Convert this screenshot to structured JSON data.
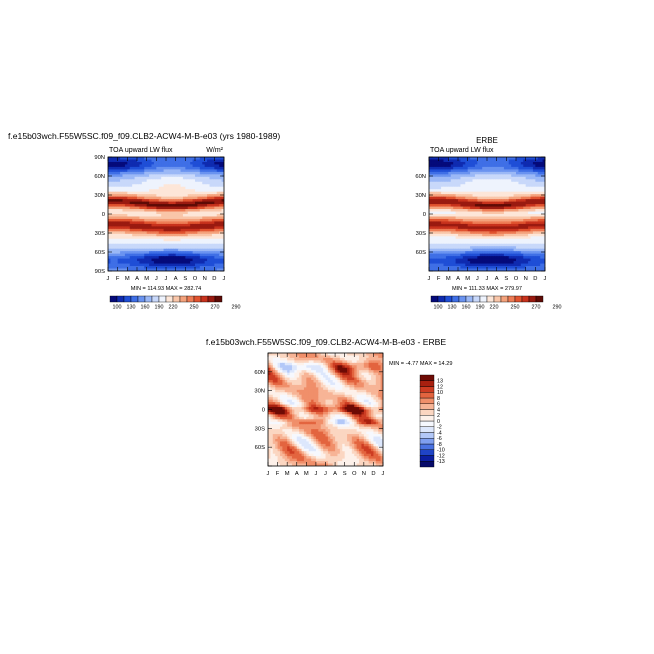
{
  "figure": {
    "left_title": "f.e15b03wch.F55W5SC.f09_f09.CLB2-ACW4-M-B-e03 (yrs 1980-1989)",
    "right_title": "ERBE",
    "bottom_title": "f.e15b03wch.F55W5SC.f09_f09.CLB2-ACW4-M-B-e03 - ERBE"
  },
  "chart_data": [
    {
      "type": "heatmap",
      "title": "TOA upward LW flux",
      "units": "W/m²",
      "x_ticks": [
        "J",
        "F",
        "M",
        "A",
        "M",
        "J",
        "J",
        "A",
        "S",
        "O",
        "N",
        "D",
        "J"
      ],
      "y_ticks": [
        "90N",
        "60N",
        "30N",
        "0",
        "30S",
        "60S",
        "90S"
      ],
      "stats": "MIN = 114.93 MAX = 282.74",
      "min": 114.93,
      "max": 282.74,
      "colorbar_labels": [
        "100",
        "130",
        "160",
        "190",
        "220",
        "250",
        "270",
        "290"
      ],
      "levels": [
        100,
        115,
        130,
        145,
        160,
        175,
        190,
        205,
        220,
        235,
        250,
        260,
        270,
        280,
        290
      ],
      "colors": [
        "#050a7a",
        "#0f2bb0",
        "#1f4ed6",
        "#3f6fe6",
        "#6a93f0",
        "#9bb8f6",
        "#c8d8fa",
        "#eef3fd",
        "#fde6d8",
        "#f9c6a9",
        "#f4a27c",
        "#ee7c55",
        "#e1532f",
        "#c8321d",
        "#9a1a10",
        "#5e0b06"
      ]
    },
    {
      "type": "heatmap",
      "title": "TOA upward LW flux",
      "units": "",
      "x_ticks": [
        "J",
        "F",
        "M",
        "A",
        "M",
        "J",
        "J",
        "A",
        "S",
        "O",
        "N",
        "D",
        "J"
      ],
      "y_ticks": [
        "",
        "60N",
        "30N",
        "0",
        "30S",
        "60S",
        ""
      ],
      "stats": "MIN = 111.33 MAX = 279.97",
      "min": 111.33,
      "max": 279.97,
      "colorbar_labels": [
        "100",
        "130",
        "160",
        "190",
        "220",
        "250",
        "270",
        "290"
      ],
      "levels": [
        100,
        115,
        130,
        145,
        160,
        175,
        190,
        205,
        220,
        235,
        250,
        260,
        270,
        280,
        290
      ],
      "colors": [
        "#050a7a",
        "#0f2bb0",
        "#1f4ed6",
        "#3f6fe6",
        "#6a93f0",
        "#9bb8f6",
        "#c8d8fa",
        "#eef3fd",
        "#fde6d8",
        "#f9c6a9",
        "#f4a27c",
        "#ee7c55",
        "#e1532f",
        "#c8321d",
        "#9a1a10",
        "#5e0b06"
      ]
    },
    {
      "type": "heatmap",
      "title": "",
      "x_ticks": [
        "J",
        "F",
        "M",
        "A",
        "M",
        "J",
        "J",
        "A",
        "S",
        "O",
        "N",
        "D",
        "J"
      ],
      "y_ticks": [
        "",
        "60N",
        "30N",
        "0",
        "30S",
        "60S",
        ""
      ],
      "stats": "MIN = -4.77 MAX = 14.29",
      "min": -4.77,
      "max": 14.29,
      "colorbar_labels": [
        "13",
        "12",
        "10",
        "8",
        "6",
        "4",
        "2",
        "0",
        "-2",
        "-4",
        "-6",
        "-8",
        "-10",
        "-12",
        "-13"
      ],
      "levels": [
        -13,
        -12,
        -10,
        -8,
        -6,
        -4,
        -2,
        0,
        2,
        4,
        6,
        8,
        10,
        12,
        13
      ],
      "colors": [
        "#070a6a",
        "#0b1ea0",
        "#1f44c6",
        "#4a72e2",
        "#7f9ff0",
        "#b3c8f8",
        "#dde7fc",
        "#f6f8fe",
        "#fdf1ea",
        "#fbd6c1",
        "#f7b496",
        "#f08f6a",
        "#e3643f",
        "#cd3c22",
        "#a8200f",
        "#6e0b05"
      ]
    }
  ]
}
